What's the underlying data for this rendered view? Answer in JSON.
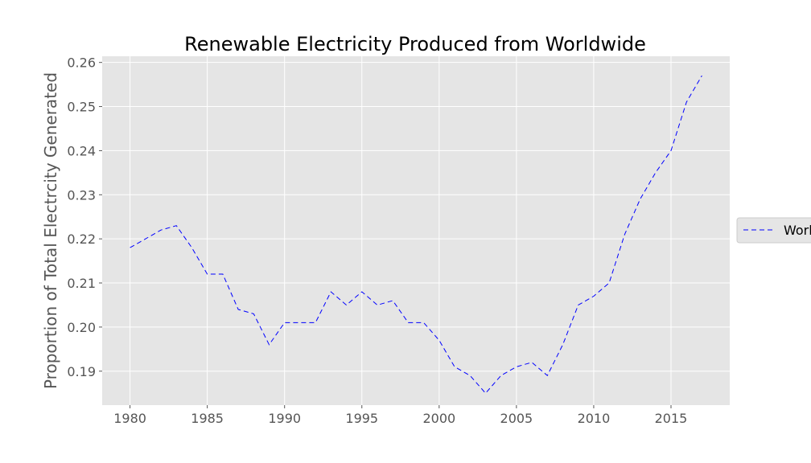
{
  "chart_data": {
    "type": "line",
    "title": "Renewable Electricity Produced from Worldwide",
    "xlabel": "",
    "ylabel": "Proportion of Total Electrcity Generated",
    "xlim": [
      1978.2,
      2018.8
    ],
    "ylim": [
      0.1823,
      0.2614
    ],
    "xticks": [
      1980,
      1985,
      1990,
      1995,
      2000,
      2005,
      2010,
      2015
    ],
    "yticks": [
      0.19,
      0.2,
      0.21,
      0.22,
      0.23,
      0.24,
      0.25,
      0.26
    ],
    "ytick_labels": [
      "0.19",
      "0.20",
      "0.21",
      "0.22",
      "0.23",
      "0.24",
      "0.25",
      "0.26"
    ],
    "grid": true,
    "legend_position": "right",
    "series": [
      {
        "name": "World",
        "color": "#0000ff",
        "linestyle": "dashed",
        "x": [
          1980,
          1981,
          1982,
          1983,
          1984,
          1985,
          1986,
          1987,
          1988,
          1989,
          1990,
          1991,
          1992,
          1993,
          1994,
          1995,
          1996,
          1997,
          1998,
          1999,
          2000,
          2001,
          2002,
          2003,
          2004,
          2005,
          2006,
          2007,
          2008,
          2009,
          2010,
          2011,
          2012,
          2013,
          2014,
          2015,
          2016,
          2017
        ],
        "values": [
          0.218,
          0.22,
          0.222,
          0.223,
          0.218,
          0.212,
          0.212,
          0.204,
          0.203,
          0.196,
          0.201,
          0.201,
          0.201,
          0.208,
          0.205,
          0.208,
          0.205,
          0.206,
          0.201,
          0.201,
          0.197,
          0.191,
          0.189,
          0.185,
          0.189,
          0.191,
          0.192,
          0.189,
          0.196,
          0.205,
          0.207,
          0.21,
          0.221,
          0.229,
          0.235,
          0.24,
          0.251,
          0.257
        ]
      }
    ]
  }
}
